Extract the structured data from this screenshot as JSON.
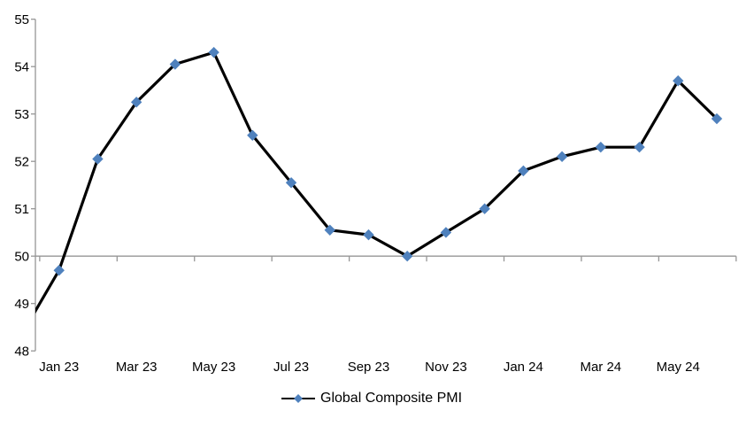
{
  "chart_data": {
    "type": "line",
    "title": "",
    "categories": [
      "Dec 22",
      "Jan 23",
      "Feb 23",
      "Mar 23",
      "Apr 23",
      "May 23",
      "Jun 23",
      "Jul 23",
      "Aug 23",
      "Sep 23",
      "Oct 23",
      "Nov 23",
      "Dec 23",
      "Jan 24",
      "Feb 24",
      "Mar 24",
      "Apr 24",
      "May 24",
      "Jun 24"
    ],
    "series": [
      {
        "name": "Global Composite PMI",
        "values": [
          48.3,
          49.7,
          52.05,
          53.25,
          54.05,
          54.3,
          52.55,
          51.55,
          50.55,
          50.45,
          50.0,
          50.5,
          51.0,
          51.8,
          52.1,
          52.3,
          52.3,
          53.7,
          52.9
        ]
      }
    ],
    "xlabel": "",
    "ylabel": "",
    "ylim": [
      48,
      55
    ],
    "y_ticks": [
      48,
      49,
      50,
      51,
      52,
      53,
      54,
      55
    ],
    "x_tick_labels": [
      "Jan 23",
      "Mar 23",
      "May 23",
      "Jul 23",
      "Sep 23",
      "Nov 23",
      "Jan 24",
      "Mar 24",
      "May 24"
    ],
    "x_axis_cross_value": 50,
    "grid": "none (only category axis line drawn at value 50)",
    "first_point_clipped_at_left_edge": true,
    "legend": {
      "position": "bottom-center",
      "entries": [
        "Global Composite PMI"
      ]
    },
    "colors": {
      "line": "#000000",
      "marker": "#4f81bd",
      "axis": "#969696",
      "text": "#000000",
      "background": "#ffffff"
    },
    "marker_shape": "diamond"
  }
}
